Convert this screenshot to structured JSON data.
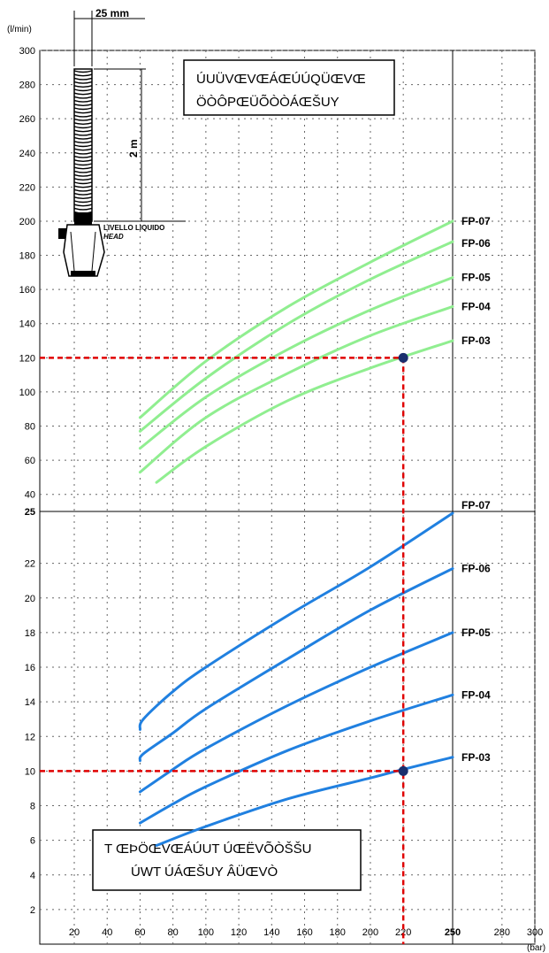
{
  "chart_data": [
    {
      "type": "line",
      "panel": "upper",
      "ylabel": "(l/min)",
      "ylim": [
        30,
        300
      ],
      "yticks": [
        40,
        60,
        80,
        100,
        120,
        140,
        160,
        180,
        200,
        220,
        240,
        260,
        280,
        300
      ],
      "xlim": [
        0,
        300
      ],
      "grid": true,
      "color": "#90ee90",
      "series": [
        {
          "name": "FP-07",
          "x": [
            60,
            100,
            150,
            200,
            250
          ],
          "y": [
            85,
            118,
            150,
            176,
            200
          ]
        },
        {
          "name": "FP-06",
          "x": [
            60,
            100,
            150,
            200,
            250
          ],
          "y": [
            77,
            108,
            140,
            166,
            188
          ]
        },
        {
          "name": "FP-05",
          "x": [
            60,
            100,
            150,
            200,
            250
          ],
          "y": [
            67,
            97,
            125,
            148,
            167
          ]
        },
        {
          "name": "FP-04",
          "x": [
            60,
            100,
            150,
            200,
            250
          ],
          "y": [
            53,
            85,
            111,
            133,
            150
          ]
        },
        {
          "name": "FP-03",
          "x": [
            70,
            100,
            150,
            200,
            250
          ],
          "y": [
            47,
            68,
            95,
            114,
            130
          ]
        }
      ],
      "box_text": [
        "ÚUÜVŒVŒÁŒÚÚQÜŒVŒ",
        "ÖÒÔPŒÜÕÒÒÁŒŠUY"
      ],
      "operating_point": {
        "x": 220,
        "y": 120
      }
    },
    {
      "type": "line",
      "panel": "lower",
      "ylim": [
        0,
        25
      ],
      "yticks": [
        2,
        4,
        6,
        8,
        10,
        12,
        14,
        16,
        18,
        20,
        22,
        25
      ],
      "xticks": [
        20,
        40,
        60,
        80,
        100,
        120,
        140,
        160,
        180,
        200,
        220,
        250,
        280,
        300
      ],
      "xlabel": "(bar)",
      "xlim": [
        0,
        300
      ],
      "grid": true,
      "color": "#2080e0",
      "series": [
        {
          "name": "FP-07",
          "x": [
            60,
            62,
            80,
            100,
            150,
            200,
            250
          ],
          "y": [
            12.4,
            13.0,
            14.6,
            16.0,
            19.0,
            21.8,
            24.9
          ]
        },
        {
          "name": "FP-06",
          "x": [
            60,
            62,
            80,
            100,
            150,
            200,
            250
          ],
          "y": [
            10.6,
            11.0,
            12.2,
            13.6,
            16.5,
            19.3,
            21.7
          ]
        },
        {
          "name": "FP-05",
          "x": [
            60,
            80,
            100,
            150,
            200,
            250
          ],
          "y": [
            8.8,
            10.1,
            11.3,
            13.8,
            16.0,
            18.0
          ]
        },
        {
          "name": "FP-04",
          "x": [
            60,
            80,
            100,
            150,
            200,
            250
          ],
          "y": [
            7.0,
            8.1,
            9.1,
            11.2,
            12.9,
            14.4
          ]
        },
        {
          "name": "FP-03",
          "x": [
            70,
            100,
            150,
            200,
            220,
            250
          ],
          "y": [
            5.7,
            6.8,
            8.4,
            9.6,
            10.1,
            10.8
          ]
        }
      ],
      "box_text": [
        "T ŒÞÖŒVŒÁÚUT ÚŒËVÕÒŠŠU",
        "ÚWT ÚÁŒŠUY ÂÜŒVÒ"
      ],
      "operating_point": {
        "x": 220,
        "y": 10
      }
    }
  ],
  "diagram": {
    "width_label": "25 mm",
    "height_label": "2 m",
    "level_label": "LIVELLO LIQUIDO",
    "head_label": "HEAD"
  },
  "colors": {
    "upper_curve": "#90ee90",
    "lower_curve": "#2080e0",
    "guide": "#e00000",
    "point": "#1a2f6e",
    "grid": "#666666"
  }
}
